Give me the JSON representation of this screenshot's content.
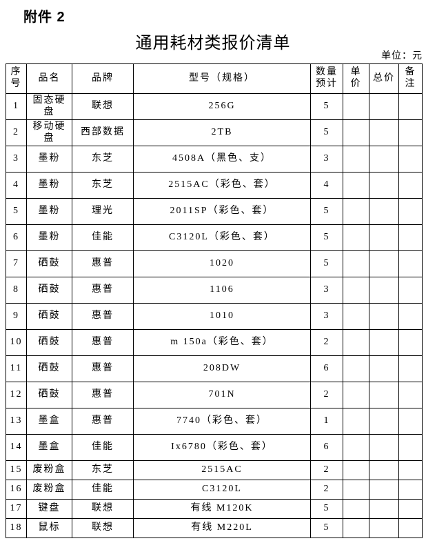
{
  "page": {
    "attachment_label": "附件 2",
    "title": "通用耗材类报价清单",
    "unit_note": "单位：元"
  },
  "table": {
    "columns": [
      {
        "key": "index",
        "label": "序\n号"
      },
      {
        "key": "name",
        "label": "品名"
      },
      {
        "key": "brand",
        "label": "品牌"
      },
      {
        "key": "model",
        "label": "型号（规格）"
      },
      {
        "key": "qty",
        "label": "数量\n预计"
      },
      {
        "key": "unit_price",
        "label": "单\n价"
      },
      {
        "key": "total_price",
        "label": "总价"
      },
      {
        "key": "remark",
        "label": "备\n注"
      }
    ],
    "rows": [
      {
        "index": "1",
        "name": "固态硬\n盘",
        "brand": "联想",
        "model": "256G",
        "qty": "5",
        "unit_price": "",
        "total_price": "",
        "remark": ""
      },
      {
        "index": "2",
        "name": "移动硬\n盘",
        "brand": "西部数据",
        "model": "2TB",
        "qty": "5",
        "unit_price": "",
        "total_price": "",
        "remark": ""
      },
      {
        "index": "3",
        "name": "墨粉",
        "brand": "东芝",
        "model": "4508A（黑色、支）",
        "qty": "3",
        "unit_price": "",
        "total_price": "",
        "remark": ""
      },
      {
        "index": "4",
        "name": "墨粉",
        "brand": "东芝",
        "model": "2515AC（彩色、套）",
        "qty": "4",
        "unit_price": "",
        "total_price": "",
        "remark": ""
      },
      {
        "index": "5",
        "name": "墨粉",
        "brand": "理光",
        "model": "2011SP（彩色、套）",
        "qty": "5",
        "unit_price": "",
        "total_price": "",
        "remark": ""
      },
      {
        "index": "6",
        "name": "墨粉",
        "brand": "佳能",
        "model": "C3120L（彩色、套）",
        "qty": "5",
        "unit_price": "",
        "total_price": "",
        "remark": ""
      },
      {
        "index": "7",
        "name": "硒鼓",
        "brand": "惠普",
        "model": "1020",
        "qty": "5",
        "unit_price": "",
        "total_price": "",
        "remark": ""
      },
      {
        "index": "8",
        "name": "硒鼓",
        "brand": "惠普",
        "model": "1106",
        "qty": "3",
        "unit_price": "",
        "total_price": "",
        "remark": ""
      },
      {
        "index": "9",
        "name": "硒鼓",
        "brand": "惠普",
        "model": "1010",
        "qty": "3",
        "unit_price": "",
        "total_price": "",
        "remark": ""
      },
      {
        "index": "10",
        "name": "硒鼓",
        "brand": "惠普",
        "model": "m 150a（彩色、套）",
        "qty": "2",
        "unit_price": "",
        "total_price": "",
        "remark": ""
      },
      {
        "index": "11",
        "name": "硒鼓",
        "brand": "惠普",
        "model": "208DW",
        "qty": "6",
        "unit_price": "",
        "total_price": "",
        "remark": ""
      },
      {
        "index": "12",
        "name": "硒鼓",
        "brand": "惠普",
        "model": "701N",
        "qty": "2",
        "unit_price": "",
        "total_price": "",
        "remark": ""
      },
      {
        "index": "13",
        "name": "墨盒",
        "brand": "惠普",
        "model": "7740（彩色、套）",
        "qty": "1",
        "unit_price": "",
        "total_price": "",
        "remark": ""
      },
      {
        "index": "14",
        "name": "墨盒",
        "brand": "佳能",
        "model": "Ix6780（彩色、套）",
        "qty": "6",
        "unit_price": "",
        "total_price": "",
        "remark": ""
      },
      {
        "index": "15",
        "name": "废粉盒",
        "brand": "东芝",
        "model": "2515AC",
        "qty": "2",
        "unit_price": "",
        "total_price": "",
        "remark": ""
      },
      {
        "index": "16",
        "name": "废粉盒",
        "brand": "佳能",
        "model": "C3120L",
        "qty": "2",
        "unit_price": "",
        "total_price": "",
        "remark": ""
      },
      {
        "index": "17",
        "name": "键盘",
        "brand": "联想",
        "model": "有线 M120K",
        "qty": "5",
        "unit_price": "",
        "total_price": "",
        "remark": ""
      },
      {
        "index": "18",
        "name": "鼠标",
        "brand": "联想",
        "model": "有线 M220L",
        "qty": "5",
        "unit_price": "",
        "total_price": "",
        "remark": ""
      }
    ]
  }
}
